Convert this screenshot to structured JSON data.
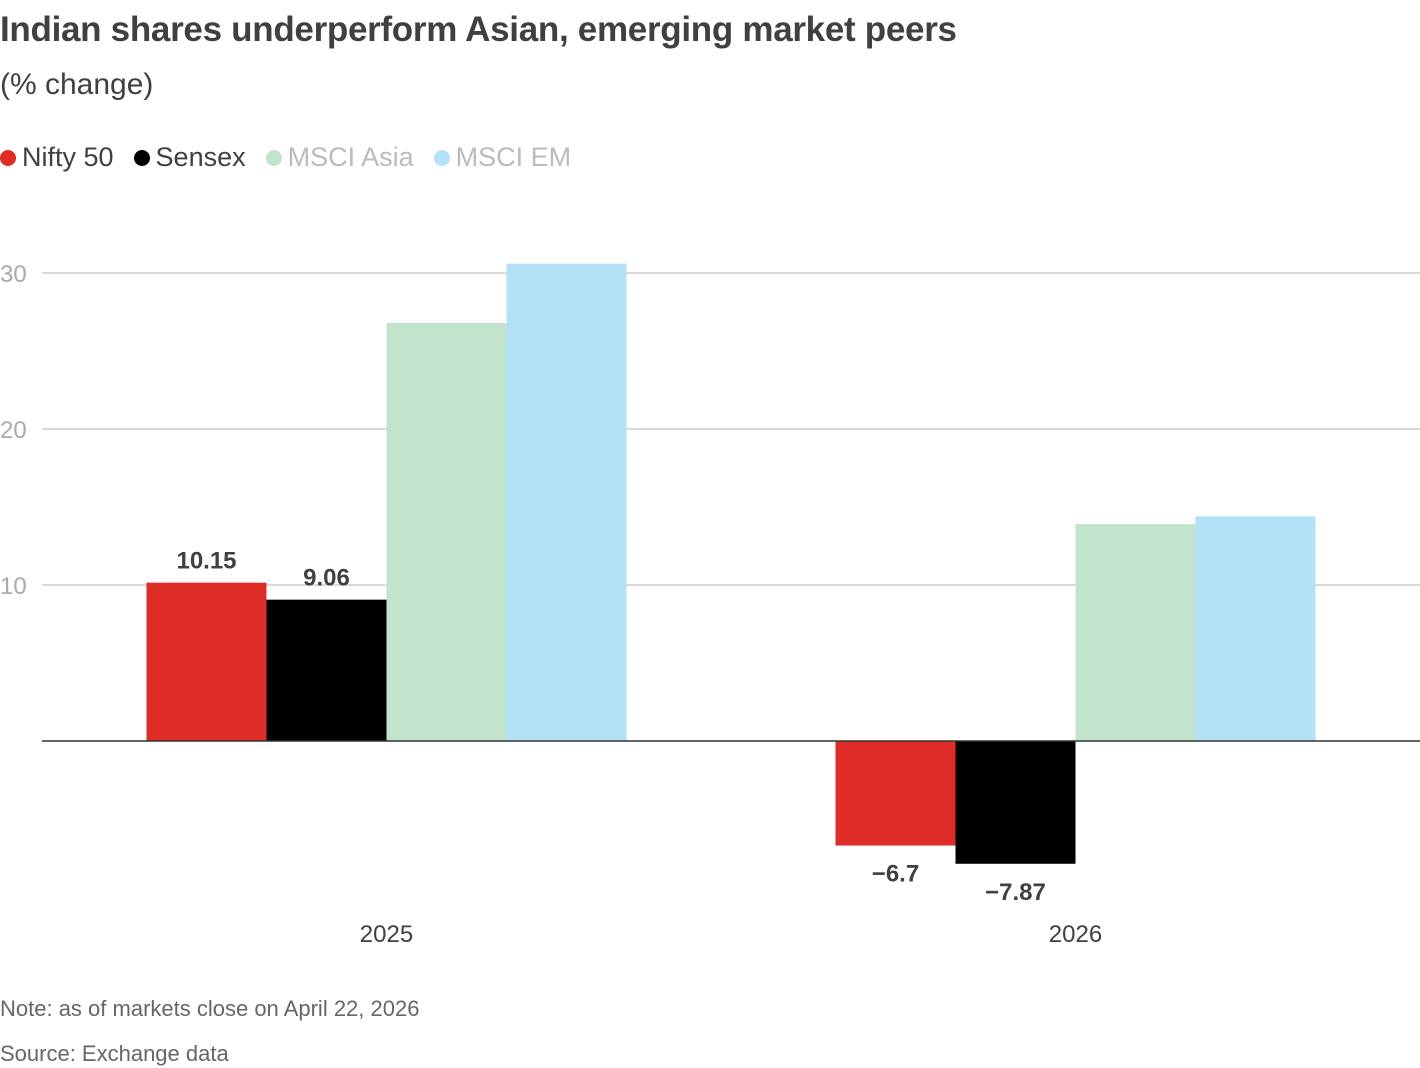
{
  "title": "Indian shares underperform Asian, emerging market peers",
  "subtitle": "(% change)",
  "note": "Note: as of markets close on April 22, 2026",
  "source": "Source: Exchange data",
  "chart_data": {
    "type": "bar",
    "title": "Indian shares underperform Asian, emerging market peers",
    "subtitle": "(% change)",
    "categories": [
      "2025",
      "2026"
    ],
    "series": [
      {
        "name": "Nifty 50",
        "color": "#de2d26",
        "values": [
          10.15,
          -6.7
        ],
        "labels": [
          "10.15",
          "−6.7"
        ]
      },
      {
        "name": "Sensex",
        "color": "#000000",
        "values": [
          9.06,
          -7.87
        ],
        "labels": [
          "9.06",
          "−7.87"
        ]
      },
      {
        "name": "MSCI Asia",
        "color": "#c3e4cc",
        "values": [
          26.8,
          13.9
        ]
      },
      {
        "name": "MSCI EM",
        "color": "#b3e2f6",
        "values": [
          30.6,
          14.4
        ]
      }
    ],
    "yticks": [
      10,
      20,
      30
    ],
    "ylim": [
      -10,
      30
    ],
    "grid": true,
    "legend": "top-left"
  }
}
